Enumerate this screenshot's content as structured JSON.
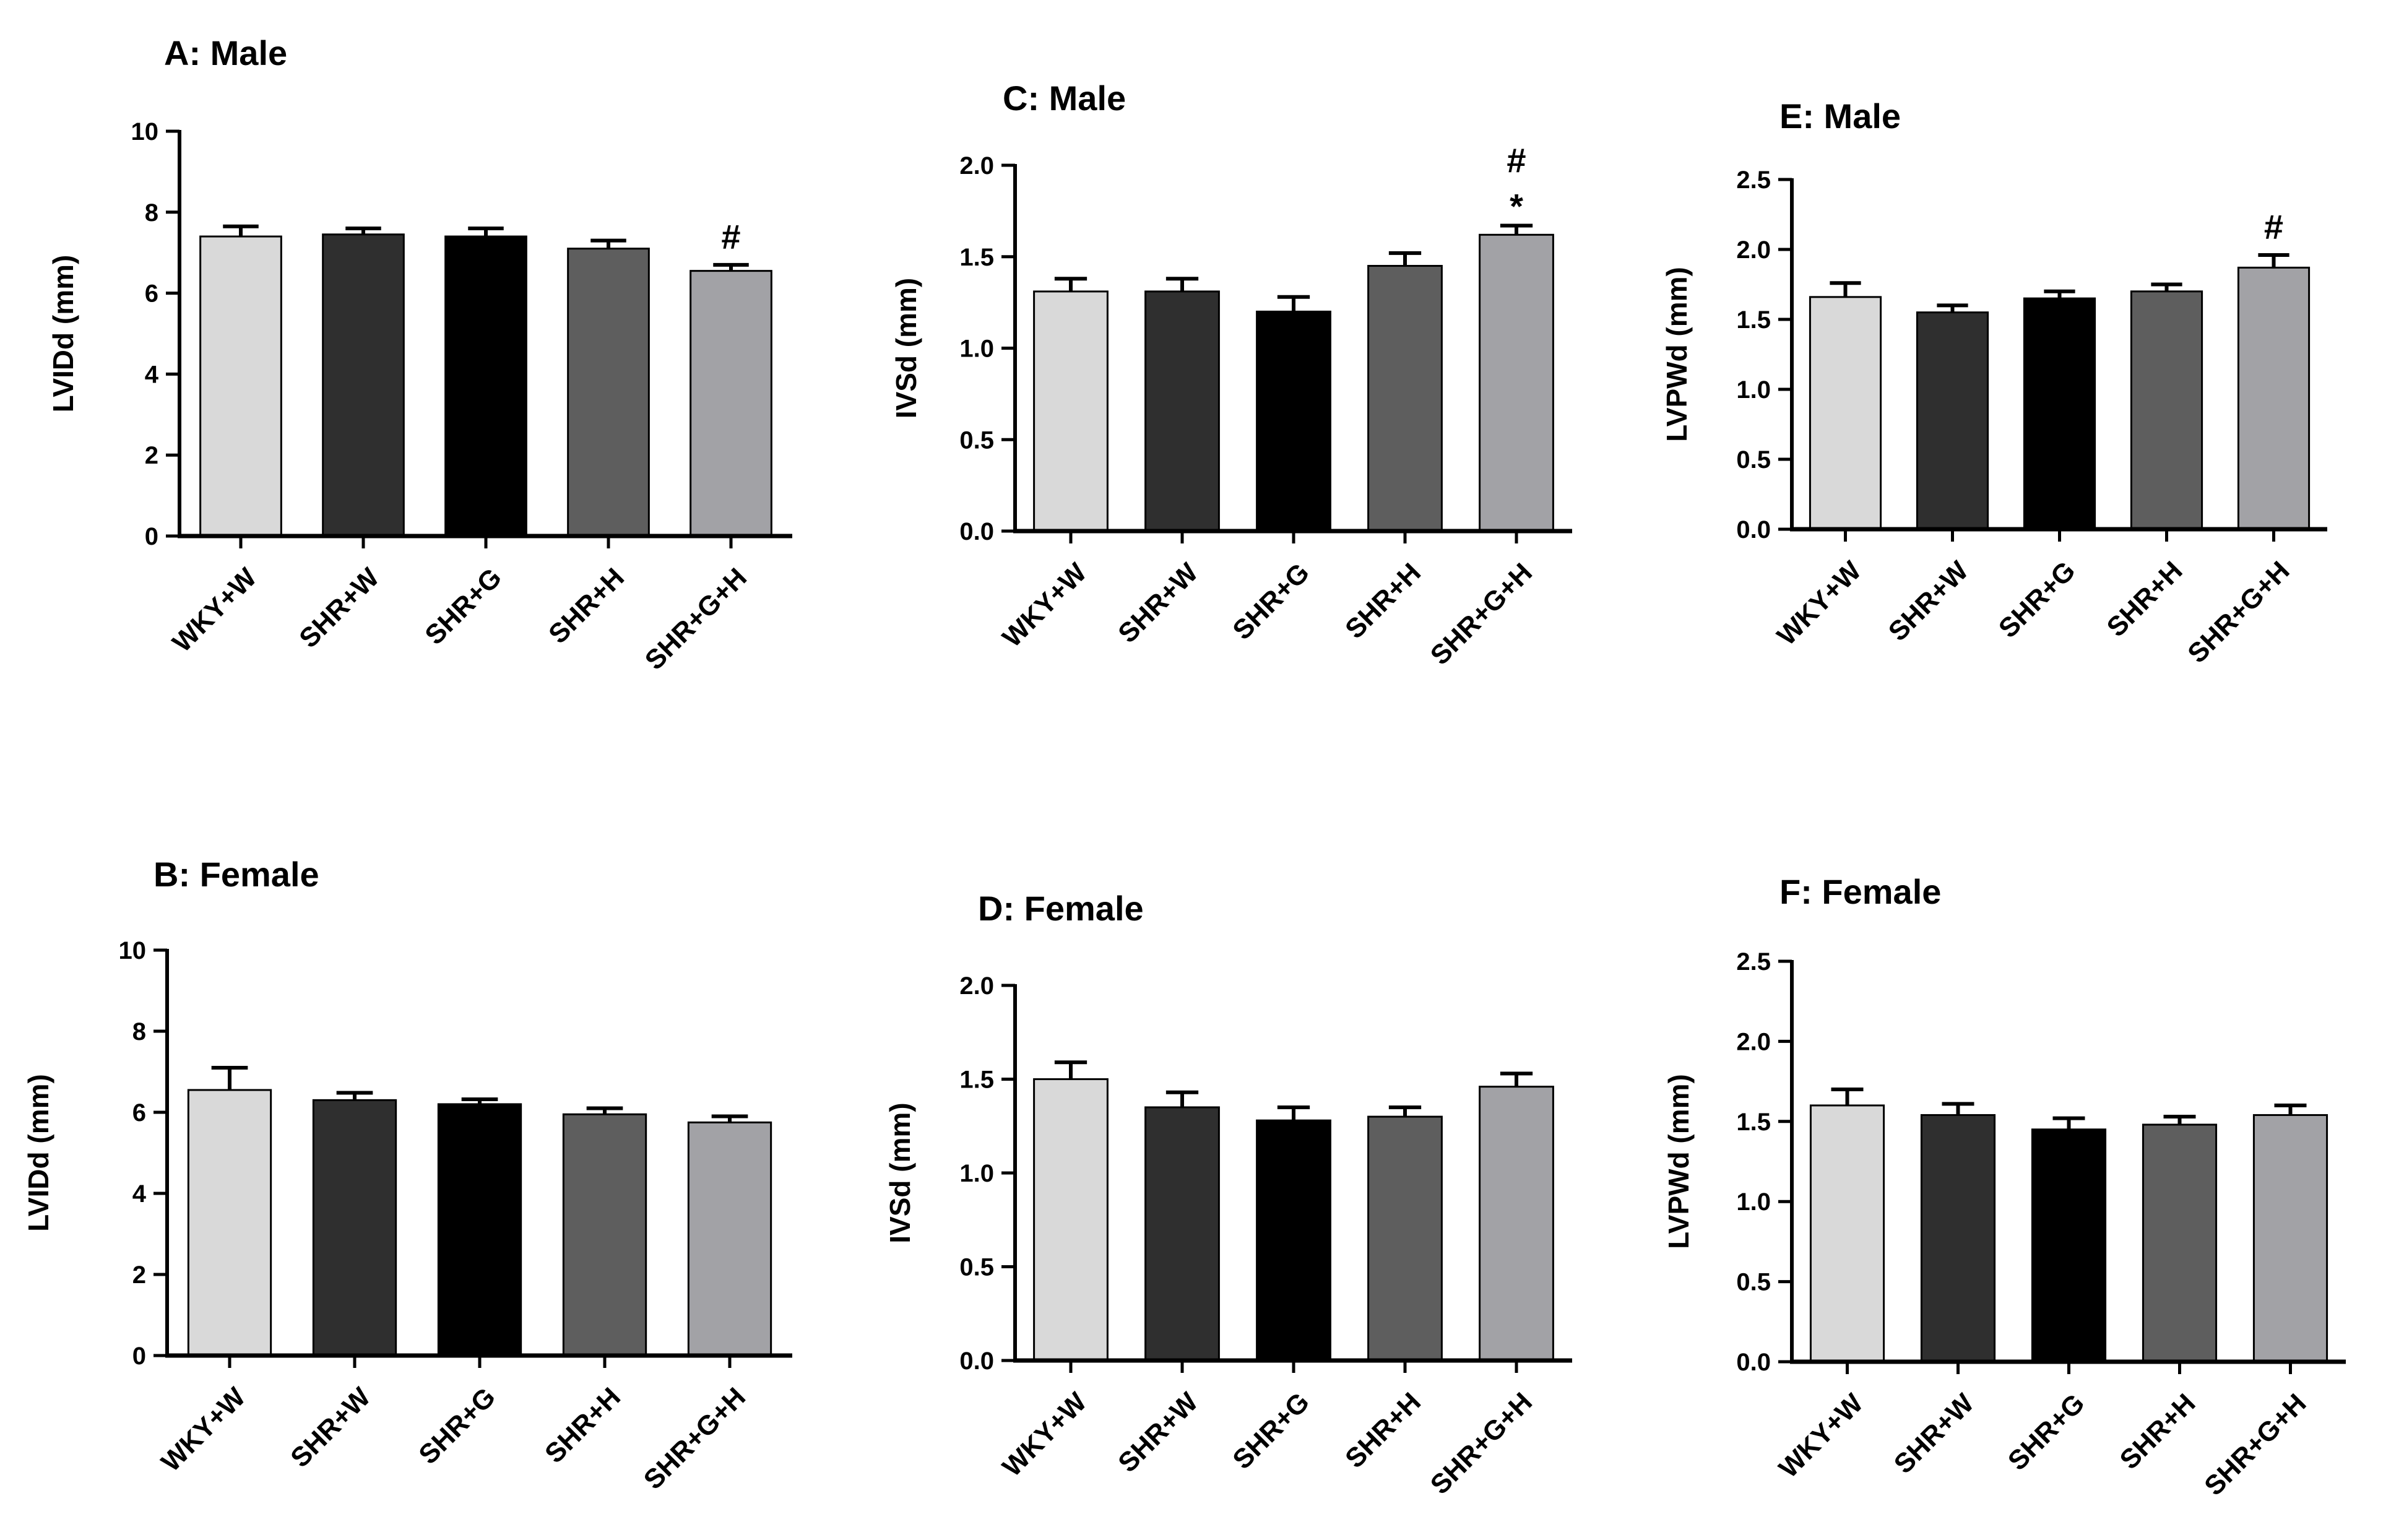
{
  "chart_data": [
    {
      "id": "A",
      "type": "bar",
      "title": "A: Male",
      "ylabel": "LVIDd (mm)",
      "ylim": [
        0,
        10
      ],
      "yticks": [
        0,
        2,
        4,
        6,
        8,
        10
      ],
      "ytick_labels": [
        "0",
        "2",
        "4",
        "6",
        "8",
        "10"
      ],
      "categories": [
        "WKY+W",
        "SHR+W",
        "SHR+G",
        "SHR+H",
        "SHR+G+H"
      ],
      "values": [
        7.4,
        7.45,
        7.4,
        7.1,
        6.55
      ],
      "errors": [
        0.25,
        0.15,
        0.2,
        0.2,
        0.15
      ],
      "annotations": [
        "",
        "",
        "",
        "",
        "#"
      ]
    },
    {
      "id": "B",
      "type": "bar",
      "title": "B: Female",
      "ylabel": "LVIDd (mm)",
      "ylim": [
        0,
        10
      ],
      "yticks": [
        0,
        2,
        4,
        6,
        8,
        10
      ],
      "ytick_labels": [
        "0",
        "2",
        "4",
        "6",
        "8",
        "10"
      ],
      "categories": [
        "WKY+W",
        "SHR+W",
        "SHR+G",
        "SHR+H",
        "SHR+G+H"
      ],
      "values": [
        6.55,
        6.3,
        6.2,
        5.95,
        5.75
      ],
      "errors": [
        0.55,
        0.18,
        0.12,
        0.15,
        0.15
      ],
      "annotations": [
        "",
        "",
        "",
        "",
        ""
      ]
    },
    {
      "id": "C",
      "type": "bar",
      "title": "C: Male",
      "ylabel": "IVSd (mm)",
      "ylim": [
        0,
        2.0
      ],
      "yticks": [
        0,
        0.5,
        1.0,
        1.5,
        2.0
      ],
      "ytick_labels": [
        "0.0",
        "0.5",
        "1.0",
        "1.5",
        "2.0"
      ],
      "categories": [
        "WKY+W",
        "SHR+W",
        "SHR+G",
        "SHR+H",
        "SHR+G+H"
      ],
      "values": [
        1.31,
        1.31,
        1.2,
        1.45,
        1.62
      ],
      "errors": [
        0.07,
        0.07,
        0.08,
        0.07,
        0.05
      ],
      "annotations": [
        "",
        "",
        "",
        "",
        "*"
      ],
      "annotations_top": [
        "",
        "",
        "",
        "",
        "#"
      ]
    },
    {
      "id": "D",
      "type": "bar",
      "title": "D: Female",
      "ylabel": "IVSd (mm)",
      "ylim": [
        0,
        2.0
      ],
      "yticks": [
        0,
        0.5,
        1.0,
        1.5,
        2.0
      ],
      "ytick_labels": [
        "0.0",
        "0.5",
        "1.0",
        "1.5",
        "2.0"
      ],
      "categories": [
        "WKY+W",
        "SHR+W",
        "SHR+G",
        "SHR+H",
        "SHR+G+H"
      ],
      "values": [
        1.5,
        1.35,
        1.28,
        1.3,
        1.46
      ],
      "errors": [
        0.09,
        0.08,
        0.07,
        0.05,
        0.07
      ],
      "annotations": [
        "",
        "",
        "",
        "",
        ""
      ]
    },
    {
      "id": "E",
      "type": "bar",
      "title": "E: Male",
      "ylabel": "LVPWd (mm)",
      "ylim": [
        0,
        2.5
      ],
      "yticks": [
        0,
        0.5,
        1.0,
        1.5,
        2.0,
        2.5
      ],
      "ytick_labels": [
        "0.0",
        "0.5",
        "1.0",
        "1.5",
        "2.0",
        "2.5"
      ],
      "categories": [
        "WKY+W",
        "SHR+W",
        "SHR+G",
        "SHR+H",
        "SHR+G+H"
      ],
      "values": [
        1.66,
        1.55,
        1.65,
        1.7,
        1.87
      ],
      "errors": [
        0.1,
        0.05,
        0.05,
        0.05,
        0.09
      ],
      "annotations": [
        "",
        "",
        "",
        "",
        "#"
      ]
    },
    {
      "id": "F",
      "type": "bar",
      "title": "F: Female",
      "ylabel": "LVPWd (mm)",
      "ylim": [
        0,
        2.5
      ],
      "yticks": [
        0,
        0.5,
        1.0,
        1.5,
        2.0,
        2.5
      ],
      "ytick_labels": [
        "0.0",
        "0.5",
        "1.0",
        "1.5",
        "2.0",
        "2.5"
      ],
      "categories": [
        "WKY+W",
        "SHR+W",
        "SHR+G",
        "SHR+H",
        "SHR+G+H"
      ],
      "values": [
        1.6,
        1.54,
        1.45,
        1.48,
        1.54
      ],
      "errors": [
        0.1,
        0.07,
        0.07,
        0.05,
        0.06
      ],
      "annotations": [
        "",
        "",
        "",
        "",
        ""
      ]
    }
  ],
  "colors": {
    "bars": [
      "#d9d9d9",
      "#2f2f2f",
      "#000000",
      "#5e5e5e",
      "#a2a2a6"
    ],
    "axis": "#000000",
    "bar_edge": "#000000"
  }
}
